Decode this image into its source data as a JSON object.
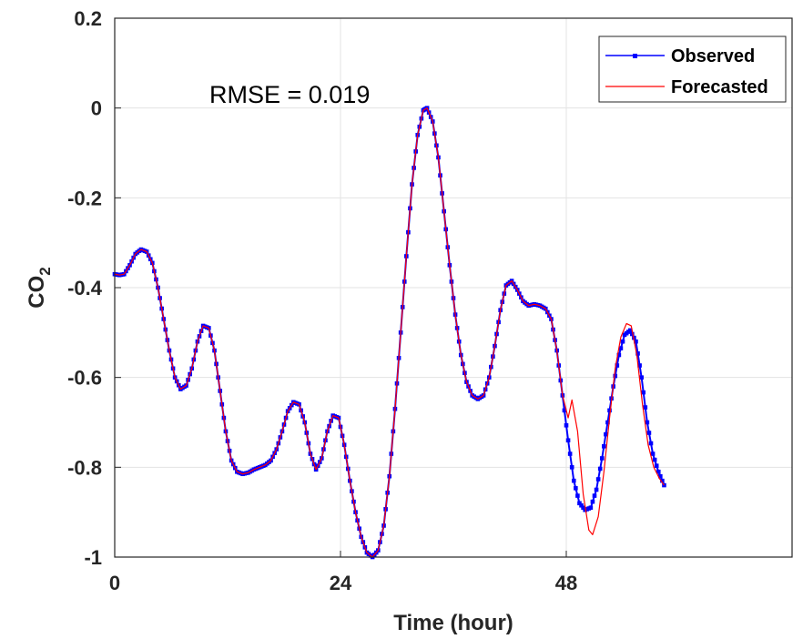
{
  "chart_data": {
    "type": "line",
    "xlabel": "Time (hour)",
    "ylabel_main": "CO",
    "ylabel_sub": "2",
    "xlim": [
      0,
      72
    ],
    "ylim": [
      -1,
      0.2
    ],
    "xticks": [
      0,
      24,
      48
    ],
    "xtick_labels": [
      "0",
      "24",
      "48"
    ],
    "yticks": [
      0.2,
      0,
      -0.2,
      -0.4,
      -0.6,
      -0.8,
      -1
    ],
    "ytick_labels": [
      "0.2",
      "0",
      "-0.2",
      "-0.4",
      "-0.6",
      "-0.8",
      "-1"
    ],
    "grid": true,
    "legend_position": "top-right",
    "annotation": "RMSE = 0.019",
    "series": [
      {
        "name": "Observed",
        "color": "#0000ff",
        "marker": "square",
        "points": [
          [
            0,
            -0.37
          ],
          [
            0.5,
            -0.372
          ],
          [
            1,
            -0.37
          ],
          [
            1.6,
            -0.35
          ],
          [
            2.2,
            -0.325
          ],
          [
            2.8,
            -0.315
          ],
          [
            3.4,
            -0.32
          ],
          [
            4,
            -0.345
          ],
          [
            4.6,
            -0.4
          ],
          [
            5.2,
            -0.47
          ],
          [
            5.8,
            -0.54
          ],
          [
            6.4,
            -0.6
          ],
          [
            7,
            -0.626
          ],
          [
            7.6,
            -0.618
          ],
          [
            8.2,
            -0.58
          ],
          [
            8.8,
            -0.52
          ],
          [
            9.4,
            -0.485
          ],
          [
            10,
            -0.49
          ],
          [
            10.6,
            -0.54
          ],
          [
            11.2,
            -0.63
          ],
          [
            11.8,
            -0.72
          ],
          [
            12.4,
            -0.785
          ],
          [
            13,
            -0.81
          ],
          [
            13.6,
            -0.815
          ],
          [
            14.2,
            -0.812
          ],
          [
            14.8,
            -0.805
          ],
          [
            15.4,
            -0.8
          ],
          [
            16,
            -0.795
          ],
          [
            16.6,
            -0.785
          ],
          [
            17.2,
            -0.76
          ],
          [
            17.8,
            -0.72
          ],
          [
            18.4,
            -0.675
          ],
          [
            19,
            -0.655
          ],
          [
            19.6,
            -0.66
          ],
          [
            20.2,
            -0.7
          ],
          [
            20.8,
            -0.77
          ],
          [
            21.4,
            -0.805
          ],
          [
            22,
            -0.78
          ],
          [
            22.6,
            -0.72
          ],
          [
            23.2,
            -0.685
          ],
          [
            23.8,
            -0.69
          ],
          [
            24.4,
            -0.75
          ],
          [
            25,
            -0.83
          ],
          [
            25.6,
            -0.9
          ],
          [
            26.2,
            -0.955
          ],
          [
            26.8,
            -0.99
          ],
          [
            27.4,
            -1.0
          ],
          [
            28,
            -0.985
          ],
          [
            28.6,
            -0.93
          ],
          [
            29.2,
            -0.82
          ],
          [
            29.8,
            -0.67
          ],
          [
            30.4,
            -0.5
          ],
          [
            31,
            -0.33
          ],
          [
            31.6,
            -0.17
          ],
          [
            32.2,
            -0.06
          ],
          [
            32.8,
            -0.005
          ],
          [
            33.2,
            0.0
          ],
          [
            33.8,
            -0.03
          ],
          [
            34.4,
            -0.11
          ],
          [
            35,
            -0.23
          ],
          [
            35.6,
            -0.35
          ],
          [
            36.2,
            -0.46
          ],
          [
            36.8,
            -0.55
          ],
          [
            37.4,
            -0.61
          ],
          [
            38,
            -0.64
          ],
          [
            38.6,
            -0.648
          ],
          [
            39.2,
            -0.64
          ],
          [
            39.8,
            -0.6
          ],
          [
            40.4,
            -0.53
          ],
          [
            41,
            -0.45
          ],
          [
            41.6,
            -0.395
          ],
          [
            42.2,
            -0.385
          ],
          [
            42.8,
            -0.405
          ],
          [
            43.4,
            -0.43
          ],
          [
            44,
            -0.44
          ],
          [
            44.6,
            -0.437
          ],
          [
            45.2,
            -0.44
          ],
          [
            45.8,
            -0.447
          ],
          [
            46.4,
            -0.47
          ],
          [
            47,
            -0.54
          ],
          [
            47.6,
            -0.64
          ],
          [
            48.2,
            -0.74
          ],
          [
            48.8,
            -0.83
          ],
          [
            49.4,
            -0.88
          ],
          [
            50,
            -0.895
          ],
          [
            50.6,
            -0.89
          ],
          [
            51.2,
            -0.85
          ],
          [
            51.8,
            -0.78
          ],
          [
            52.4,
            -0.7
          ],
          [
            53,
            -0.62
          ],
          [
            53.6,
            -0.55
          ],
          [
            54.2,
            -0.505
          ],
          [
            54.8,
            -0.495
          ],
          [
            55.4,
            -0.52
          ],
          [
            56,
            -0.6
          ],
          [
            56.6,
            -0.7
          ],
          [
            57.2,
            -0.77
          ],
          [
            57.8,
            -0.81
          ],
          [
            58.4,
            -0.84
          ]
        ]
      },
      {
        "name": "Forecasted",
        "color": "#ff0000",
        "marker": "none",
        "points": [
          [
            0,
            -0.37
          ],
          [
            0.5,
            -0.372
          ],
          [
            1,
            -0.37
          ],
          [
            1.6,
            -0.35
          ],
          [
            2.2,
            -0.325
          ],
          [
            2.8,
            -0.315
          ],
          [
            3.4,
            -0.32
          ],
          [
            4,
            -0.345
          ],
          [
            4.6,
            -0.4
          ],
          [
            5.2,
            -0.47
          ],
          [
            5.8,
            -0.54
          ],
          [
            6.4,
            -0.6
          ],
          [
            7,
            -0.626
          ],
          [
            7.6,
            -0.618
          ],
          [
            8.2,
            -0.58
          ],
          [
            8.8,
            -0.52
          ],
          [
            9.4,
            -0.485
          ],
          [
            10,
            -0.49
          ],
          [
            10.6,
            -0.54
          ],
          [
            11.2,
            -0.63
          ],
          [
            11.8,
            -0.72
          ],
          [
            12.4,
            -0.785
          ],
          [
            13,
            -0.81
          ],
          [
            13.6,
            -0.815
          ],
          [
            14.2,
            -0.812
          ],
          [
            14.8,
            -0.805
          ],
          [
            15.4,
            -0.8
          ],
          [
            16,
            -0.795
          ],
          [
            16.6,
            -0.785
          ],
          [
            17.2,
            -0.76
          ],
          [
            17.8,
            -0.72
          ],
          [
            18.4,
            -0.675
          ],
          [
            19,
            -0.655
          ],
          [
            19.6,
            -0.66
          ],
          [
            20.2,
            -0.7
          ],
          [
            20.8,
            -0.77
          ],
          [
            21.4,
            -0.805
          ],
          [
            22,
            -0.78
          ],
          [
            22.6,
            -0.72
          ],
          [
            23.2,
            -0.685
          ],
          [
            23.8,
            -0.69
          ],
          [
            24.4,
            -0.75
          ],
          [
            25,
            -0.83
          ],
          [
            25.6,
            -0.9
          ],
          [
            26.2,
            -0.955
          ],
          [
            26.8,
            -0.99
          ],
          [
            27.4,
            -1.0
          ],
          [
            28,
            -0.985
          ],
          [
            28.6,
            -0.93
          ],
          [
            29.2,
            -0.82
          ],
          [
            29.8,
            -0.67
          ],
          [
            30.4,
            -0.5
          ],
          [
            31,
            -0.33
          ],
          [
            31.6,
            -0.17
          ],
          [
            32.2,
            -0.06
          ],
          [
            32.8,
            -0.005
          ],
          [
            33.2,
            0.0
          ],
          [
            33.8,
            -0.03
          ],
          [
            34.4,
            -0.11
          ],
          [
            35,
            -0.23
          ],
          [
            35.6,
            -0.35
          ],
          [
            36.2,
            -0.46
          ],
          [
            36.8,
            -0.55
          ],
          [
            37.4,
            -0.61
          ],
          [
            38,
            -0.64
          ],
          [
            38.6,
            -0.648
          ],
          [
            39.2,
            -0.64
          ],
          [
            39.8,
            -0.6
          ],
          [
            40.4,
            -0.53
          ],
          [
            41,
            -0.45
          ],
          [
            41.6,
            -0.395
          ],
          [
            42.2,
            -0.385
          ],
          [
            42.8,
            -0.405
          ],
          [
            43.4,
            -0.43
          ],
          [
            44,
            -0.44
          ],
          [
            44.6,
            -0.437
          ],
          [
            45.2,
            -0.44
          ],
          [
            45.8,
            -0.447
          ],
          [
            46.4,
            -0.47
          ],
          [
            47,
            -0.54
          ],
          [
            47.6,
            -0.64
          ],
          [
            48.2,
            -0.69
          ],
          [
            48.6,
            -0.65
          ],
          [
            49.2,
            -0.72
          ],
          [
            49.8,
            -0.86
          ],
          [
            50.4,
            -0.94
          ],
          [
            50.8,
            -0.95
          ],
          [
            51.4,
            -0.91
          ],
          [
            52,
            -0.81
          ],
          [
            52.6,
            -0.69
          ],
          [
            53.2,
            -0.58
          ],
          [
            53.8,
            -0.51
          ],
          [
            54.4,
            -0.48
          ],
          [
            54.9,
            -0.485
          ],
          [
            55.5,
            -0.55
          ],
          [
            56.1,
            -0.66
          ],
          [
            56.7,
            -0.75
          ],
          [
            57.3,
            -0.8
          ],
          [
            57.9,
            -0.825
          ],
          [
            58.4,
            -0.84
          ]
        ]
      }
    ]
  }
}
